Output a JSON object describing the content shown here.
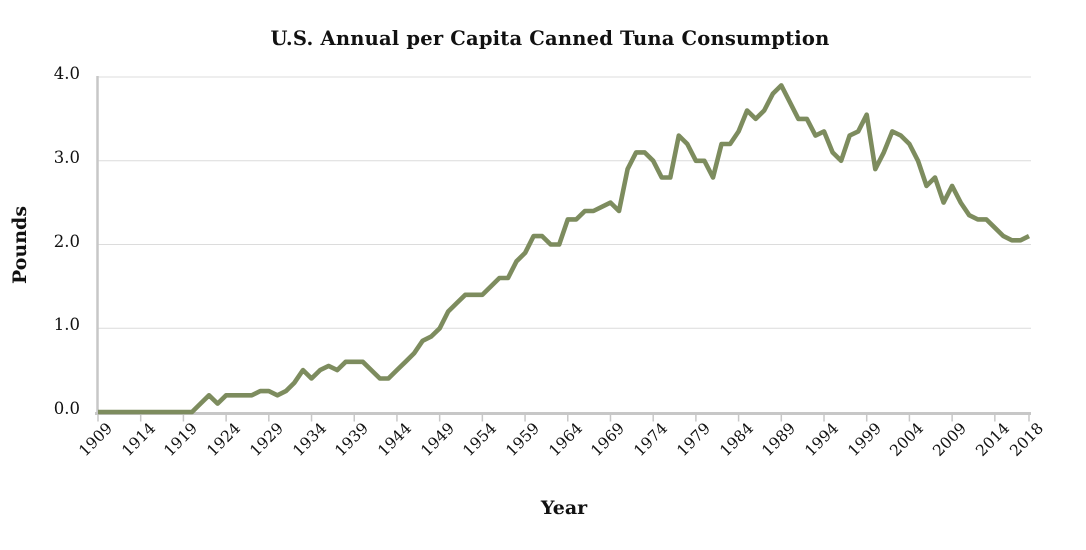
{
  "title": "U.S. Annual per Capita Canned Tuna Consumption",
  "colors": {
    "line": "#7d8c5e",
    "gridline": "#dcdcdc",
    "axis": "#c7c7c7",
    "text": "#111111",
    "background": "#ffffff"
  },
  "chart_data": {
    "type": "line",
    "title": "U.S. Annual per Capita Canned Tuna Consumption",
    "xlabel": "Year",
    "ylabel": "Pounds",
    "xlim": [
      1909,
      2018
    ],
    "ylim": [
      0.0,
      4.0
    ],
    "grid": "horizontal-only",
    "legend": "none",
    "x_ticks": [
      1909,
      1914,
      1919,
      1924,
      1929,
      1934,
      1939,
      1944,
      1949,
      1954,
      1959,
      1964,
      1969,
      1974,
      1979,
      1984,
      1989,
      1994,
      1999,
      2004,
      2009,
      2014,
      2018
    ],
    "y_ticks": [
      0.0,
      1.0,
      2.0,
      3.0,
      4.0
    ],
    "y_tick_labels": [
      "0.0",
      "1.0",
      "2.0",
      "3.0",
      "4.0"
    ],
    "x": [
      1909,
      1910,
      1911,
      1912,
      1913,
      1914,
      1915,
      1916,
      1917,
      1918,
      1919,
      1920,
      1921,
      1922,
      1923,
      1924,
      1925,
      1926,
      1927,
      1928,
      1929,
      1930,
      1931,
      1932,
      1933,
      1934,
      1935,
      1936,
      1937,
      1938,
      1939,
      1940,
      1941,
      1942,
      1943,
      1944,
      1945,
      1946,
      1947,
      1948,
      1949,
      1950,
      1951,
      1952,
      1953,
      1954,
      1955,
      1956,
      1957,
      1958,
      1959,
      1960,
      1961,
      1962,
      1963,
      1964,
      1965,
      1966,
      1967,
      1968,
      1969,
      1970,
      1971,
      1972,
      1973,
      1974,
      1975,
      1976,
      1977,
      1978,
      1979,
      1980,
      1981,
      1982,
      1983,
      1984,
      1985,
      1986,
      1987,
      1988,
      1989,
      1990,
      1991,
      1992,
      1993,
      1994,
      1995,
      1996,
      1997,
      1998,
      1999,
      2000,
      2001,
      2002,
      2003,
      2004,
      2005,
      2006,
      2007,
      2008,
      2009,
      2010,
      2011,
      2012,
      2013,
      2014,
      2015,
      2016,
      2017,
      2018
    ],
    "values": [
      0,
      0,
      0,
      0,
      0,
      0,
      0,
      0,
      0,
      0,
      0,
      0,
      0.1,
      0.2,
      0.1,
      0.2,
      0.2,
      0.2,
      0.2,
      0.25,
      0.25,
      0.2,
      0.25,
      0.35,
      0.5,
      0.4,
      0.5,
      0.55,
      0.5,
      0.6,
      0.6,
      0.6,
      0.5,
      0.4,
      0.4,
      0.5,
      0.6,
      0.7,
      0.85,
      0.9,
      1.0,
      1.2,
      1.3,
      1.4,
      1.4,
      1.4,
      1.5,
      1.6,
      1.6,
      1.8,
      1.9,
      2.1,
      2.1,
      2.0,
      2.0,
      2.3,
      2.3,
      2.4,
      2.4,
      2.45,
      2.5,
      2.4,
      2.9,
      3.1,
      3.1,
      3.0,
      2.8,
      2.8,
      3.3,
      3.2,
      3.0,
      3.0,
      2.8,
      3.2,
      3.2,
      3.35,
      3.6,
      3.5,
      3.6,
      3.8,
      3.9,
      3.7,
      3.5,
      3.5,
      3.3,
      3.35,
      3.1,
      3.0,
      3.3,
      3.35,
      3.55,
      2.9,
      3.1,
      3.35,
      3.3,
      3.2,
      3.0,
      2.7,
      2.8,
      2.5,
      2.7,
      2.5,
      2.35,
      2.3,
      2.3,
      2.2,
      2.1,
      2.05,
      2.05,
      2.1
    ]
  }
}
